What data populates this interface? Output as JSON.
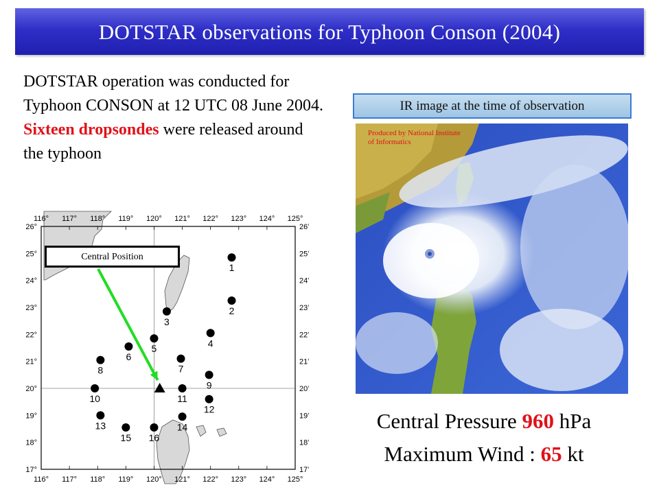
{
  "title": "DOTSTAR observations for Typhoon Conson (2004)",
  "paragraph": {
    "part1": "DOTSTAR operation was conducted for Typhoon CONSON at 12 UTC 08 June 2004.",
    "highlight": "Sixteen dropsondes",
    "part2": "were released around the typhoon"
  },
  "map": {
    "lon_labels": [
      "116°",
      "117°",
      "118°",
      "119°",
      "120°",
      "121°",
      "122°",
      "123°",
      "124°",
      "125°"
    ],
    "lat_labels": [
      "26°",
      "25°",
      "24°",
      "23°",
      "22°",
      "21°",
      "20°",
      "19°",
      "18°",
      "17°"
    ],
    "central_position_label": "Central Position",
    "dropsondes": [
      {
        "label": "1",
        "lon": 122.75,
        "lat": 24.85
      },
      {
        "label": "2",
        "lon": 122.75,
        "lat": 23.25
      },
      {
        "label": "3",
        "lon": 120.45,
        "lat": 22.85
      },
      {
        "label": "4",
        "lon": 122.0,
        "lat": 22.05
      },
      {
        "label": "5",
        "lon": 120.0,
        "lat": 21.85
      },
      {
        "label": "6",
        "lon": 119.1,
        "lat": 21.55
      },
      {
        "label": "7",
        "lon": 120.95,
        "lat": 21.1
      },
      {
        "label": "8",
        "lon": 118.1,
        "lat": 21.05
      },
      {
        "label": "9",
        "lon": 121.95,
        "lat": 20.5
      },
      {
        "label": "10",
        "lon": 117.9,
        "lat": 20.0
      },
      {
        "label": "11",
        "lon": 121.0,
        "lat": 20.0
      },
      {
        "label": "12",
        "lon": 121.95,
        "lat": 19.6
      },
      {
        "label": "13",
        "lon": 118.1,
        "lat": 19.0
      },
      {
        "label": "14",
        "lon": 121.0,
        "lat": 18.95
      },
      {
        "label": "15",
        "lon": 119.0,
        "lat": 18.55
      },
      {
        "label": "16",
        "lon": 120.0,
        "lat": 18.55
      }
    ],
    "center": {
      "lon": 120.2,
      "lat": 20.0
    }
  },
  "ir": {
    "caption": "IR image at the time of observation",
    "credit": "Produced by National Institute of Informatics"
  },
  "stats": {
    "pressure_label": "Central Pressure",
    "pressure_value": "960",
    "pressure_unit": "hPa",
    "wind_label": "Maximum Wind :",
    "wind_value": "65",
    "wind_unit": "kt"
  },
  "colors": {
    "title_bg": "#2f2fc8",
    "highlight": "#e0121a",
    "arrow": "#22dd22",
    "caption_border": "#3b7bd4"
  }
}
